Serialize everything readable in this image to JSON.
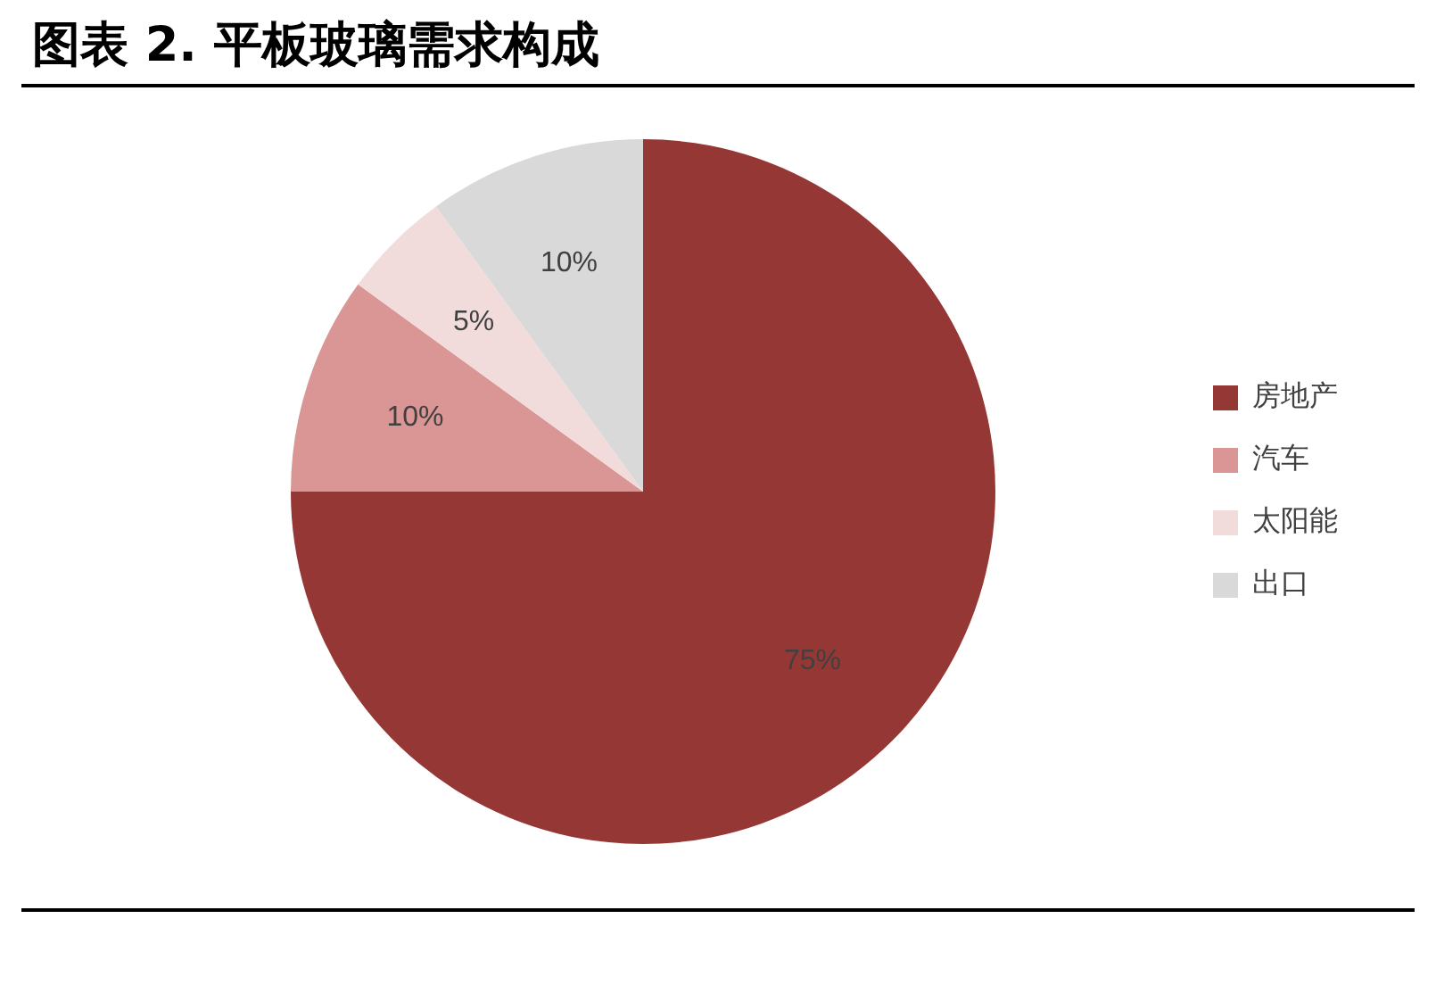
{
  "chart_data": {
    "type": "pie",
    "title": "图表 2. 平板玻璃需求构成",
    "categories": [
      "房地产",
      "汽车",
      "太阳能",
      "出口"
    ],
    "values": [
      75,
      10,
      5,
      10
    ],
    "colors": [
      "#953735",
      "#d99694",
      "#f2dcdb",
      "#d9d9d9"
    ],
    "value_labels": [
      "75%",
      "10%",
      "5%",
      "10%"
    ],
    "legend": "right"
  }
}
